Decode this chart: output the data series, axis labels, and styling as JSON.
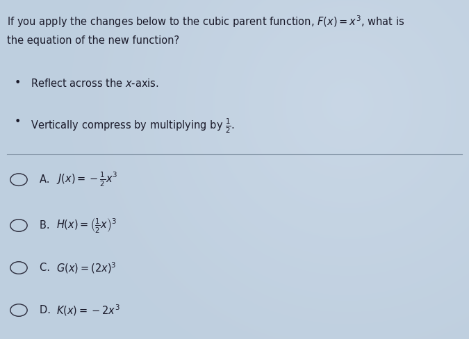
{
  "background_color": "#bfcfdf",
  "question_line1": "If you apply the changes below to the cubic parent function, ",
  "question_line1_math": "$F(x) = x^3$",
  "question_line1_end": ", what is",
  "question_line2": "the equation of the new function?",
  "bullet1": "Reflect across the ",
  "bullet1_italic": "x",
  "bullet1_end": "-axis.",
  "bullet2_pre": "Vertically compress by multiplying by ",
  "bullet2_frac": "$\\frac{1}{2}$",
  "bullet2_end": ".",
  "options": [
    {
      "label": "A. ",
      "text": "$J(x) = -\\frac{1}{2}x^3$"
    },
    {
      "label": "B. ",
      "text": "$H(x) = \\left(\\frac{1}{2}x\\right)^3$"
    },
    {
      "label": "C. ",
      "text": "$G(x) = (2x)^3$"
    },
    {
      "label": "D. ",
      "text": "$K(x) = -2x^3$"
    }
  ],
  "text_color": "#1a1a2a",
  "circle_color": "#2a2a3a",
  "divider_color": "#8899aa",
  "question_fontsize": 10.5,
  "bullet_fontsize": 10.5,
  "option_fontsize": 10.5,
  "label_fontsize": 10.5
}
